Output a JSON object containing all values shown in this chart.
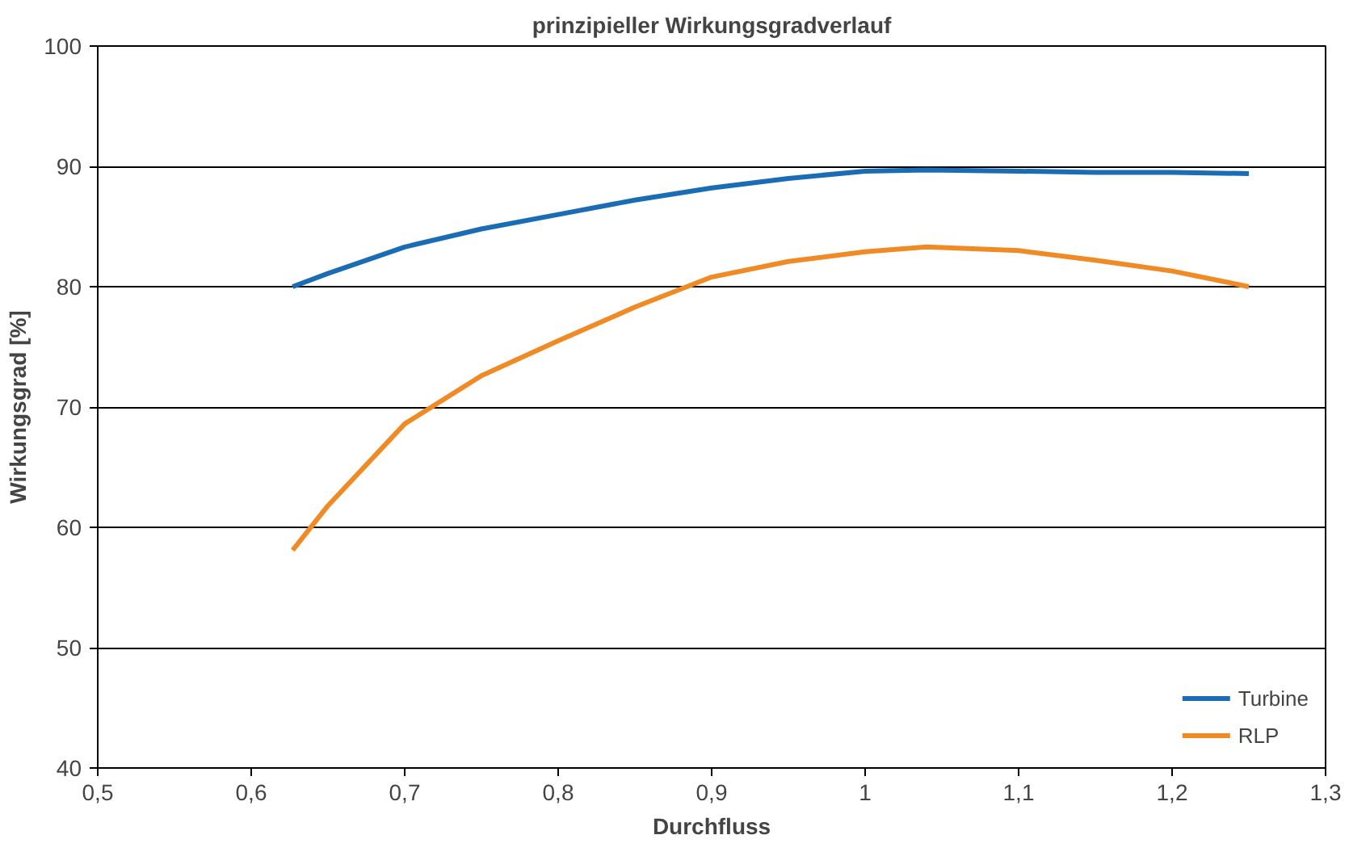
{
  "chart_data": {
    "type": "line",
    "title": "prinzipieller Wirkungsgradverlauf",
    "xlabel": "Durchfluss",
    "ylabel": "Wirkungsgrad [%]",
    "x": [
      0.627,
      0.65,
      0.7,
      0.75,
      0.8,
      0.85,
      0.9,
      0.95,
      1.0,
      1.04,
      1.1,
      1.15,
      1.2,
      1.25
    ],
    "series": [
      {
        "name": "Turbine",
        "color": "#1a6db5",
        "values": [
          80.0,
          81.1,
          83.3,
          84.8,
          86.0,
          87.2,
          88.2,
          89.0,
          89.6,
          89.7,
          89.6,
          89.5,
          89.5,
          89.4
        ]
      },
      {
        "name": "RLP",
        "color": "#f08a24",
        "values": [
          58.1,
          61.8,
          68.6,
          72.6,
          75.5,
          78.3,
          80.8,
          82.1,
          82.9,
          83.3,
          83.0,
          82.2,
          81.3,
          80.0
        ]
      }
    ],
    "xlim": [
      0.5,
      1.3
    ],
    "ylim": [
      40,
      100
    ],
    "xticks": [
      {
        "value": 0.5,
        "label": "0,5"
      },
      {
        "value": 0.6,
        "label": "0,6"
      },
      {
        "value": 0.7,
        "label": "0,7"
      },
      {
        "value": 0.8,
        "label": "0,8"
      },
      {
        "value": 0.9,
        "label": "0,9"
      },
      1,
      {
        "value": 1.1,
        "label": "1,1"
      },
      {
        "value": 1.2,
        "label": "1,2"
      },
      {
        "value": 1.3,
        "label": "1,3"
      }
    ],
    "yticks": [
      40,
      50,
      60,
      70,
      80,
      90,
      100
    ],
    "grid": "y",
    "legend": "bottom right",
    "marker": "none",
    "line_style": "solid"
  }
}
